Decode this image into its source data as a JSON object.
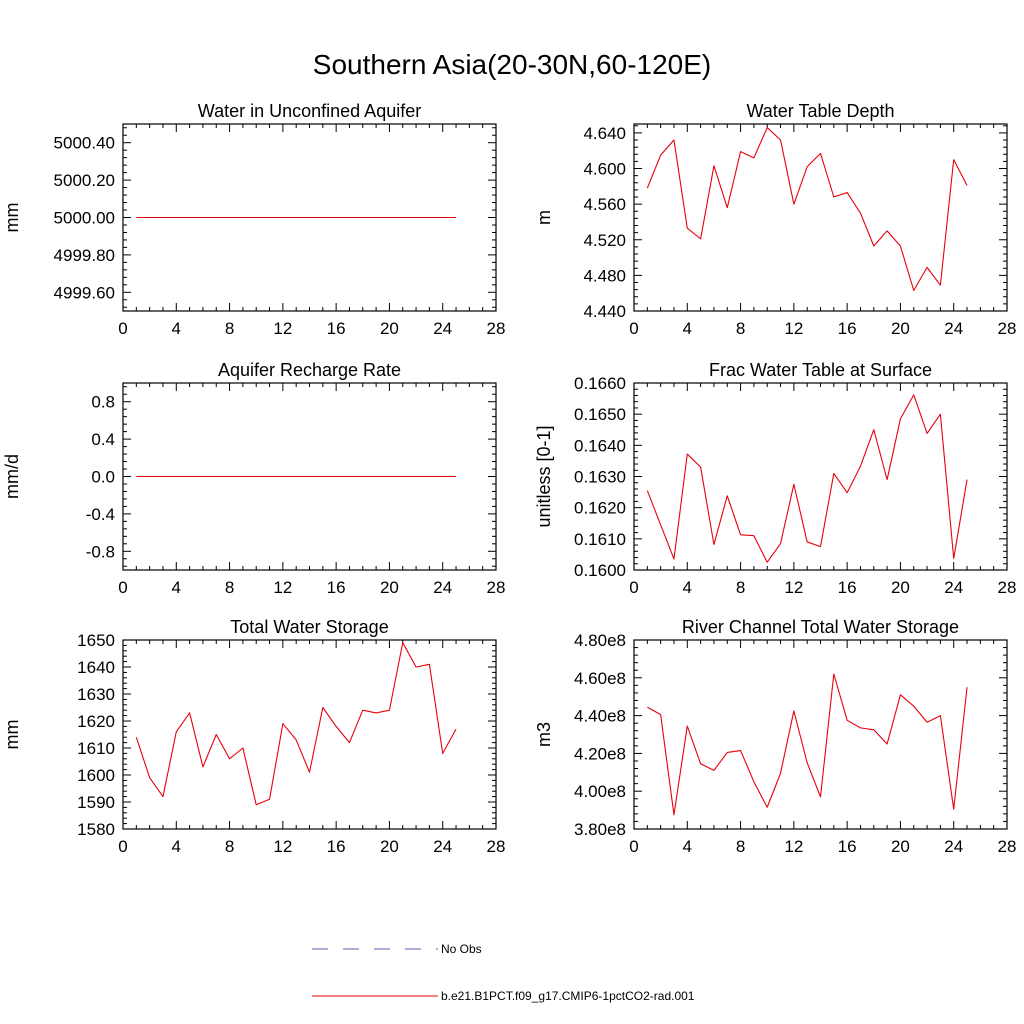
{
  "title": "Southern Asia(20-30N,60-120E)",
  "colors": {
    "series": "#e8000b",
    "no_obs": "#5a5aa8",
    "axis": "#000000"
  },
  "legend": {
    "entries": [
      {
        "label": "No Obs",
        "style": "dashed",
        "color": "#5a5aa8"
      },
      {
        "label": "b.e21.B1PCT.f09_g17.CMIP6-1pctCO2-rad.001",
        "style": "solid",
        "color": "#e8000b"
      }
    ]
  },
  "chart_data": [
    {
      "type": "line",
      "title": "Water in Unconfined Aquifer",
      "xlabel": "",
      "ylabel": "mm",
      "xlim": [
        0,
        28
      ],
      "xticks": [
        0,
        4,
        8,
        12,
        16,
        20,
        24,
        28
      ],
      "ylim": [
        4999.5,
        5000.5
      ],
      "yticks": [
        4999.6,
        4999.8,
        5000.0,
        5000.2,
        5000.4
      ],
      "ytick_labels": [
        "4999.60",
        "4999.80",
        "5000.00",
        "5000.20",
        "5000.40"
      ],
      "grid": false,
      "x": [
        1,
        2,
        3,
        4,
        5,
        6,
        7,
        8,
        9,
        10,
        11,
        12,
        13,
        14,
        15,
        16,
        17,
        18,
        19,
        20,
        21,
        22,
        23,
        24,
        25
      ],
      "series": [
        {
          "values": [
            5000,
            5000,
            5000,
            5000,
            5000,
            5000,
            5000,
            5000,
            5000,
            5000,
            5000,
            5000,
            5000,
            5000,
            5000,
            5000,
            5000,
            5000,
            5000,
            5000,
            5000,
            5000,
            5000,
            5000,
            5000
          ]
        }
      ]
    },
    {
      "type": "line",
      "title": "Water Table Depth",
      "xlabel": "",
      "ylabel": "m",
      "xlim": [
        0,
        28
      ],
      "xticks": [
        0,
        4,
        8,
        12,
        16,
        20,
        24,
        28
      ],
      "ylim": [
        4.44,
        4.65
      ],
      "yticks": [
        4.44,
        4.48,
        4.52,
        4.56,
        4.6,
        4.64
      ],
      "ytick_labels": [
        "4.440",
        "4.480",
        "4.520",
        "4.560",
        "4.600",
        "4.640"
      ],
      "grid": false,
      "x": [
        1,
        2,
        3,
        4,
        5,
        6,
        7,
        8,
        9,
        10,
        11,
        12,
        13,
        14,
        15,
        16,
        17,
        18,
        19,
        20,
        21,
        22,
        23,
        24,
        25
      ],
      "series": [
        {
          "values": [
            4.578,
            4.615,
            4.632,
            4.533,
            4.521,
            4.603,
            4.556,
            4.619,
            4.612,
            4.646,
            4.632,
            4.56,
            4.602,
            4.617,
            4.568,
            4.573,
            4.55,
            4.513,
            4.53,
            4.513,
            4.463,
            4.489,
            4.469,
            4.61,
            4.581
          ]
        }
      ]
    },
    {
      "type": "line",
      "title": "Aquifer Recharge Rate",
      "xlabel": "",
      "ylabel": "mm/d",
      "xlim": [
        0,
        28
      ],
      "xticks": [
        0,
        4,
        8,
        12,
        16,
        20,
        24,
        28
      ],
      "ylim": [
        -1.0,
        1.0
      ],
      "yticks": [
        -0.8,
        -0.4,
        0.0,
        0.4,
        0.8
      ],
      "ytick_labels": [
        "-0.8",
        "-0.4",
        "0.0",
        "0.4",
        "0.8"
      ],
      "grid": false,
      "x": [
        1,
        2,
        3,
        4,
        5,
        6,
        7,
        8,
        9,
        10,
        11,
        12,
        13,
        14,
        15,
        16,
        17,
        18,
        19,
        20,
        21,
        22,
        23,
        24,
        25
      ],
      "series": [
        {
          "values": [
            0,
            0,
            0,
            0,
            0,
            0,
            0,
            0,
            0,
            0,
            0,
            0,
            0,
            0,
            0,
            0,
            0,
            0,
            0,
            0,
            0,
            0,
            0,
            0,
            0
          ]
        }
      ]
    },
    {
      "type": "line",
      "title": "Frac Water Table at Surface",
      "xlabel": "",
      "ylabel": "unitless [0-1]",
      "xlim": [
        0,
        28
      ],
      "xticks": [
        0,
        4,
        8,
        12,
        16,
        20,
        24,
        28
      ],
      "ylim": [
        0.16,
        0.166
      ],
      "yticks": [
        0.16,
        0.161,
        0.162,
        0.163,
        0.164,
        0.165,
        0.166
      ],
      "ytick_labels": [
        "0.1600",
        "0.1610",
        "0.1620",
        "0.1630",
        "0.1640",
        "0.1650",
        "0.1660"
      ],
      "grid": false,
      "x": [
        1,
        2,
        3,
        4,
        5,
        6,
        7,
        8,
        9,
        10,
        11,
        12,
        13,
        14,
        15,
        16,
        17,
        18,
        19,
        20,
        21,
        22,
        23,
        24,
        25
      ],
      "series": [
        {
          "values": [
            0.16255,
            0.16145,
            0.16035,
            0.16372,
            0.1633,
            0.16082,
            0.16238,
            0.16113,
            0.1611,
            0.16025,
            0.16085,
            0.16275,
            0.1609,
            0.16075,
            0.1631,
            0.16248,
            0.16333,
            0.1645,
            0.1629,
            0.16485,
            0.16562,
            0.16438,
            0.165,
            0.16037,
            0.1629
          ]
        }
      ]
    },
    {
      "type": "line",
      "title": "Total Water Storage",
      "xlabel": "",
      "ylabel": "mm",
      "xlim": [
        0,
        28
      ],
      "xticks": [
        0,
        4,
        8,
        12,
        16,
        20,
        24,
        28
      ],
      "ylim": [
        1580,
        1650
      ],
      "yticks": [
        1580,
        1590,
        1600,
        1610,
        1620,
        1630,
        1640,
        1650
      ],
      "ytick_labels": [
        "1580",
        "1590",
        "1600",
        "1610",
        "1620",
        "1630",
        "1640",
        "1650"
      ],
      "grid": false,
      "x": [
        1,
        2,
        3,
        4,
        5,
        6,
        7,
        8,
        9,
        10,
        11,
        12,
        13,
        14,
        15,
        16,
        17,
        18,
        19,
        20,
        21,
        22,
        23,
        24,
        25
      ],
      "series": [
        {
          "values": [
            1614,
            1599,
            1592,
            1616,
            1623,
            1603,
            1615,
            1606,
            1610,
            1589,
            1591,
            1619,
            1613,
            1601,
            1625,
            1618,
            1612,
            1624,
            1623,
            1624,
            1649,
            1640,
            1641,
            1608,
            1617
          ]
        }
      ]
    },
    {
      "type": "line",
      "title": "River Channel Total Water Storage",
      "xlabel": "",
      "ylabel": "m3",
      "xlim": [
        0,
        28
      ],
      "xticks": [
        0,
        4,
        8,
        12,
        16,
        20,
        24,
        28
      ],
      "ylim": [
        380000000,
        480000000
      ],
      "yticks": [
        380000000,
        400000000,
        420000000,
        440000000,
        460000000,
        480000000
      ],
      "ytick_labels": [
        "3.80e8",
        "4.00e8",
        "4.20e8",
        "4.40e8",
        "4.60e8",
        "4.80e8"
      ],
      "grid": false,
      "x": [
        1,
        2,
        3,
        4,
        5,
        6,
        7,
        8,
        9,
        10,
        11,
        12,
        13,
        14,
        15,
        16,
        17,
        18,
        19,
        20,
        21,
        22,
        23,
        24,
        25
      ],
      "series": [
        {
          "values": [
            444500000,
            440500000,
            387500000,
            434500000,
            414500000,
            411000000,
            420500000,
            421500000,
            405000000,
            391500000,
            409500000,
            442500000,
            415000000,
            397000000,
            462000000,
            437500000,
            433500000,
            432500000,
            425000000,
            451000000,
            445000000,
            436500000,
            440000000,
            390500000,
            455000000
          ]
        }
      ]
    }
  ]
}
